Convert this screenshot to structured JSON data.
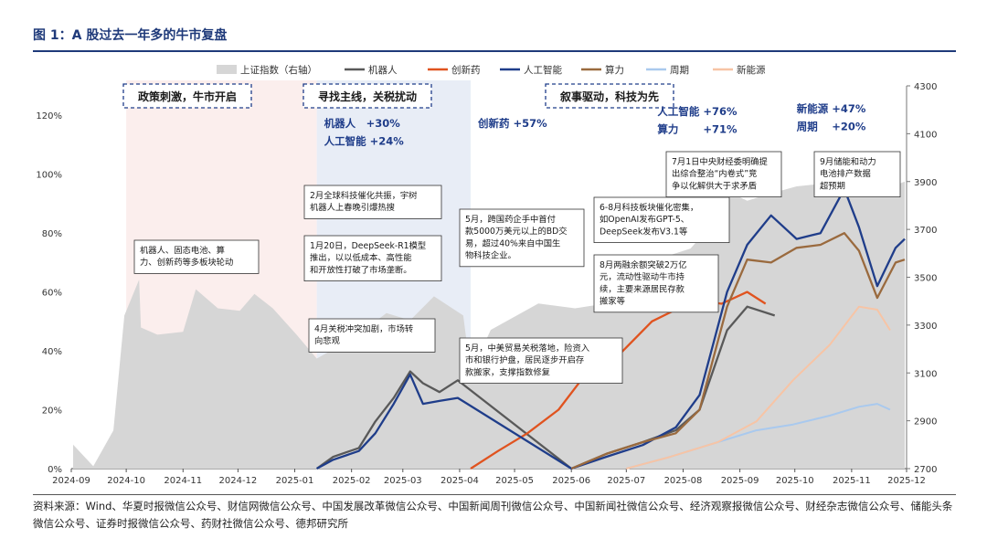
{
  "figure": {
    "title": "图 1：A 股过去一年多的牛市复盘",
    "source": "资料来源：Wind、华夏时报微信公众号、财信网微信公众号、中国发展改革微信公众号、中国新闻周刊微信公众号、中国新闻社微信公众号、经济观察报微信公众号、财经杂志微信公众号、储能头条微信公众号、证券时报微信公众号、药财社微信公众号、德邦研究所"
  },
  "chart_data": {
    "type": "line",
    "x_ticks": [
      "2024-09",
      "2024-10",
      "2024-11",
      "2024-12",
      "2025-01",
      "2025-02",
      "2025-03",
      "2025-04",
      "2025-05",
      "2025-06",
      "2025-07",
      "2025-08",
      "2025-09",
      "2025-10",
      "2025-11",
      "2025-12"
    ],
    "y_left": {
      "ticks": [
        "0%",
        "20%",
        "40%",
        "60%",
        "80%",
        "100%",
        "120%"
      ],
      "range": [
        0,
        130
      ]
    },
    "y_right": {
      "ticks": [
        "2700",
        "2900",
        "3100",
        "3300",
        "3500",
        "3700",
        "3900",
        "4100",
        "4300"
      ],
      "range": [
        2700,
        4300
      ]
    },
    "legend": [
      "上证指数（右轴）",
      "机器人",
      "创新药",
      "人工智能",
      "算力",
      "周期",
      "新能源"
    ],
    "colors": {
      "index": "#d6d6d6",
      "robot": "#595959",
      "pharma": "#e0531f",
      "ai": "#1f3d8a",
      "compute": "#9a6a3e",
      "cycle": "#a9c9ee",
      "newenergy": "#f7c4a5",
      "phase1": "#fbeeed",
      "phase2": "#e8edf6"
    },
    "phases": [
      {
        "label": "政策刺激，牛市开启",
        "start": "2024-10-01",
        "end": "2025-01-13"
      },
      {
        "label": "寻找主线，关税扰动",
        "start": "2025-01-13",
        "end": "2025-04-07"
      },
      {
        "label": "叙事驱动，科技为先",
        "start": "2025-04-07",
        "end": "2025-12-01"
      }
    ],
    "series": [
      {
        "key": "index",
        "name": "上证指数（右轴）",
        "axis": "right",
        "x": [
          "2024-09-02",
          "2024-09-13",
          "2024-09-24",
          "2024-09-30",
          "2024-10-08",
          "2024-10-09",
          "2024-10-18",
          "2024-11-01",
          "2024-11-08",
          "2024-11-20",
          "2024-12-02",
          "2024-12-10",
          "2024-12-20",
          "2025-01-02",
          "2025-01-13",
          "2025-02-03",
          "2025-02-20",
          "2025-03-05",
          "2025-03-18",
          "2025-04-03",
          "2025-04-07",
          "2025-04-18",
          "2025-05-14",
          "2025-06-03",
          "2025-06-20",
          "2025-07-10",
          "2025-07-24",
          "2025-08-05",
          "2025-08-18",
          "2025-08-25",
          "2025-09-05",
          "2025-09-18",
          "2025-10-02",
          "2025-10-15",
          "2025-10-28",
          "2025-11-10",
          "2025-11-20",
          "2025-11-30"
        ],
        "values": [
          2800,
          2710,
          2860,
          3340,
          3490,
          3290,
          3260,
          3272,
          3450,
          3370,
          3360,
          3430,
          3370,
          3260,
          3160,
          3250,
          3350,
          3320,
          3420,
          3340,
          3100,
          3280,
          3390,
          3370,
          3390,
          3510,
          3590,
          3620,
          3730,
          3860,
          3820,
          3850,
          3880,
          3890,
          3990,
          3950,
          3870,
          3900
        ]
      },
      {
        "key": "robot",
        "name": "机器人",
        "axis": "left",
        "x": [
          "2025-01-13",
          "2025-01-22",
          "2025-02-05",
          "2025-02-14",
          "2025-02-24",
          "2025-03-05",
          "2025-03-12",
          "2025-03-21",
          "2025-03-31",
          "2025-06-01",
          "2025-06-20",
          "2025-07-10",
          "2025-07-28",
          "2025-08-10",
          "2025-08-25",
          "2025-09-05",
          "2025-09-20"
        ],
        "values": [
          0,
          4,
          7,
          16,
          24,
          33,
          29,
          26,
          30,
          0,
          5,
          9,
          13,
          20,
          47,
          55,
          52
        ]
      },
      {
        "key": "pharma",
        "name": "创新药",
        "axis": "left",
        "x": [
          "2025-04-07",
          "2025-04-22",
          "2025-05-08",
          "2025-05-25",
          "2025-06-10",
          "2025-06-26",
          "2025-07-15",
          "2025-07-28",
          "2025-08-10",
          "2025-08-22",
          "2025-09-05",
          "2025-09-15"
        ],
        "values": [
          0,
          6,
          12,
          20,
          33,
          38,
          50,
          54,
          57,
          56,
          60,
          56
        ]
      },
      {
        "key": "ai",
        "name": "人工智能",
        "axis": "left",
        "x": [
          "2025-01-13",
          "2025-01-22",
          "2025-02-05",
          "2025-02-14",
          "2025-02-24",
          "2025-03-05",
          "2025-03-12",
          "2025-03-21",
          "2025-03-31",
          "2025-06-01",
          "2025-06-20",
          "2025-07-10",
          "2025-07-28",
          "2025-08-10",
          "2025-08-25",
          "2025-09-05",
          "2025-09-18",
          "2025-10-02",
          "2025-10-15",
          "2025-10-28",
          "2025-11-05",
          "2025-11-15",
          "2025-11-25",
          "2025-11-30"
        ],
        "values": [
          0,
          3,
          6,
          12,
          22,
          32,
          22,
          23,
          24,
          0,
          4,
          8,
          14,
          25,
          60,
          76,
          86,
          78,
          80,
          95,
          82,
          62,
          75,
          78
        ]
      },
      {
        "key": "compute",
        "name": "算力",
        "axis": "left",
        "x": [
          "2025-06-01",
          "2025-06-20",
          "2025-07-10",
          "2025-07-28",
          "2025-08-10",
          "2025-08-25",
          "2025-09-05",
          "2025-09-18",
          "2025-10-02",
          "2025-10-15",
          "2025-10-28",
          "2025-11-05",
          "2025-11-15",
          "2025-11-25",
          "2025-11-30"
        ],
        "values": [
          0,
          5,
          9,
          12,
          20,
          55,
          71,
          70,
          75,
          76,
          80,
          74,
          58,
          70,
          71
        ]
      },
      {
        "key": "cycle",
        "name": "周期",
        "axis": "left",
        "x": [
          "2025-07-01",
          "2025-07-25",
          "2025-08-20",
          "2025-09-10",
          "2025-09-30",
          "2025-10-20",
          "2025-11-05",
          "2025-11-15",
          "2025-11-22"
        ],
        "values": [
          0,
          4,
          9,
          13,
          15,
          18,
          21,
          22,
          20
        ]
      },
      {
        "key": "newenergy",
        "name": "新能源",
        "axis": "left",
        "x": [
          "2025-07-01",
          "2025-07-25",
          "2025-08-20",
          "2025-09-10",
          "2025-09-30",
          "2025-10-20",
          "2025-11-05",
          "2025-11-15",
          "2025-11-22"
        ],
        "values": [
          0,
          4,
          9,
          16,
          30,
          42,
          55,
          54,
          47
        ]
      }
    ],
    "highlights": [
      {
        "text": "机器人　+30%",
        "date": "2025-01-13",
        "y": 116
      },
      {
        "text": "人工智能 +24%",
        "date": "2025-01-13",
        "y": 110
      },
      {
        "text": "创新药 +57%",
        "date": "2025-04-07",
        "y": 116
      },
      {
        "text": "人工智能 +76%",
        "date": "2025-07-14",
        "y": 120
      },
      {
        "text": "算力　　 +71%",
        "date": "2025-07-14",
        "y": 114
      },
      {
        "text": "新能源 +47%",
        "date": "2025-09-28",
        "y": 121
      },
      {
        "text": "周期　 +20%",
        "date": "2025-09-28",
        "y": 115
      }
    ],
    "annotations": [
      {
        "lines": [
          "机器人、固态电池、算",
          "力、创新药等多板块轮动"
        ]
      },
      {
        "lines": [
          "2月全球科技催化共振，宇树",
          "机器人上春晚引爆热搜"
        ]
      },
      {
        "lines": [
          "1月20日，DeepSeek-R1模型",
          "推出，以以低成本、高性能",
          "和开放性打破了市场垄断。"
        ]
      },
      {
        "lines": [
          "4月关税冲突加剧，市场转",
          "向悲观"
        ]
      },
      {
        "lines": [
          "5月，跨国药企手中首付",
          "款5000万美元以上的BD交",
          "易，超过40%来自中国生",
          "物科技企业。"
        ]
      },
      {
        "lines": [
          "5月，中美贸易关税落地，险资入",
          "市和银行护盘，居民逐步开启存",
          "款搬家，支撑指数修复"
        ]
      },
      {
        "lines": [
          "6-8月科技板块催化密集，",
          "如OpenAI发布GPT-5、",
          "DeepSeek发布V3.1等"
        ]
      },
      {
        "lines": [
          "8月两融余额突破2万亿",
          "元，流动性驱动牛市持",
          "续，主要来源居民存款",
          "搬家等"
        ]
      },
      {
        "lines": [
          "7月1日中央财经委明确提",
          "出综合整治“内卷式”竞",
          "争以化解供大于求矛盾"
        ]
      },
      {
        "lines": [
          "9月储能和动力",
          "电池排产数据",
          "超预期"
        ]
      }
    ]
  }
}
